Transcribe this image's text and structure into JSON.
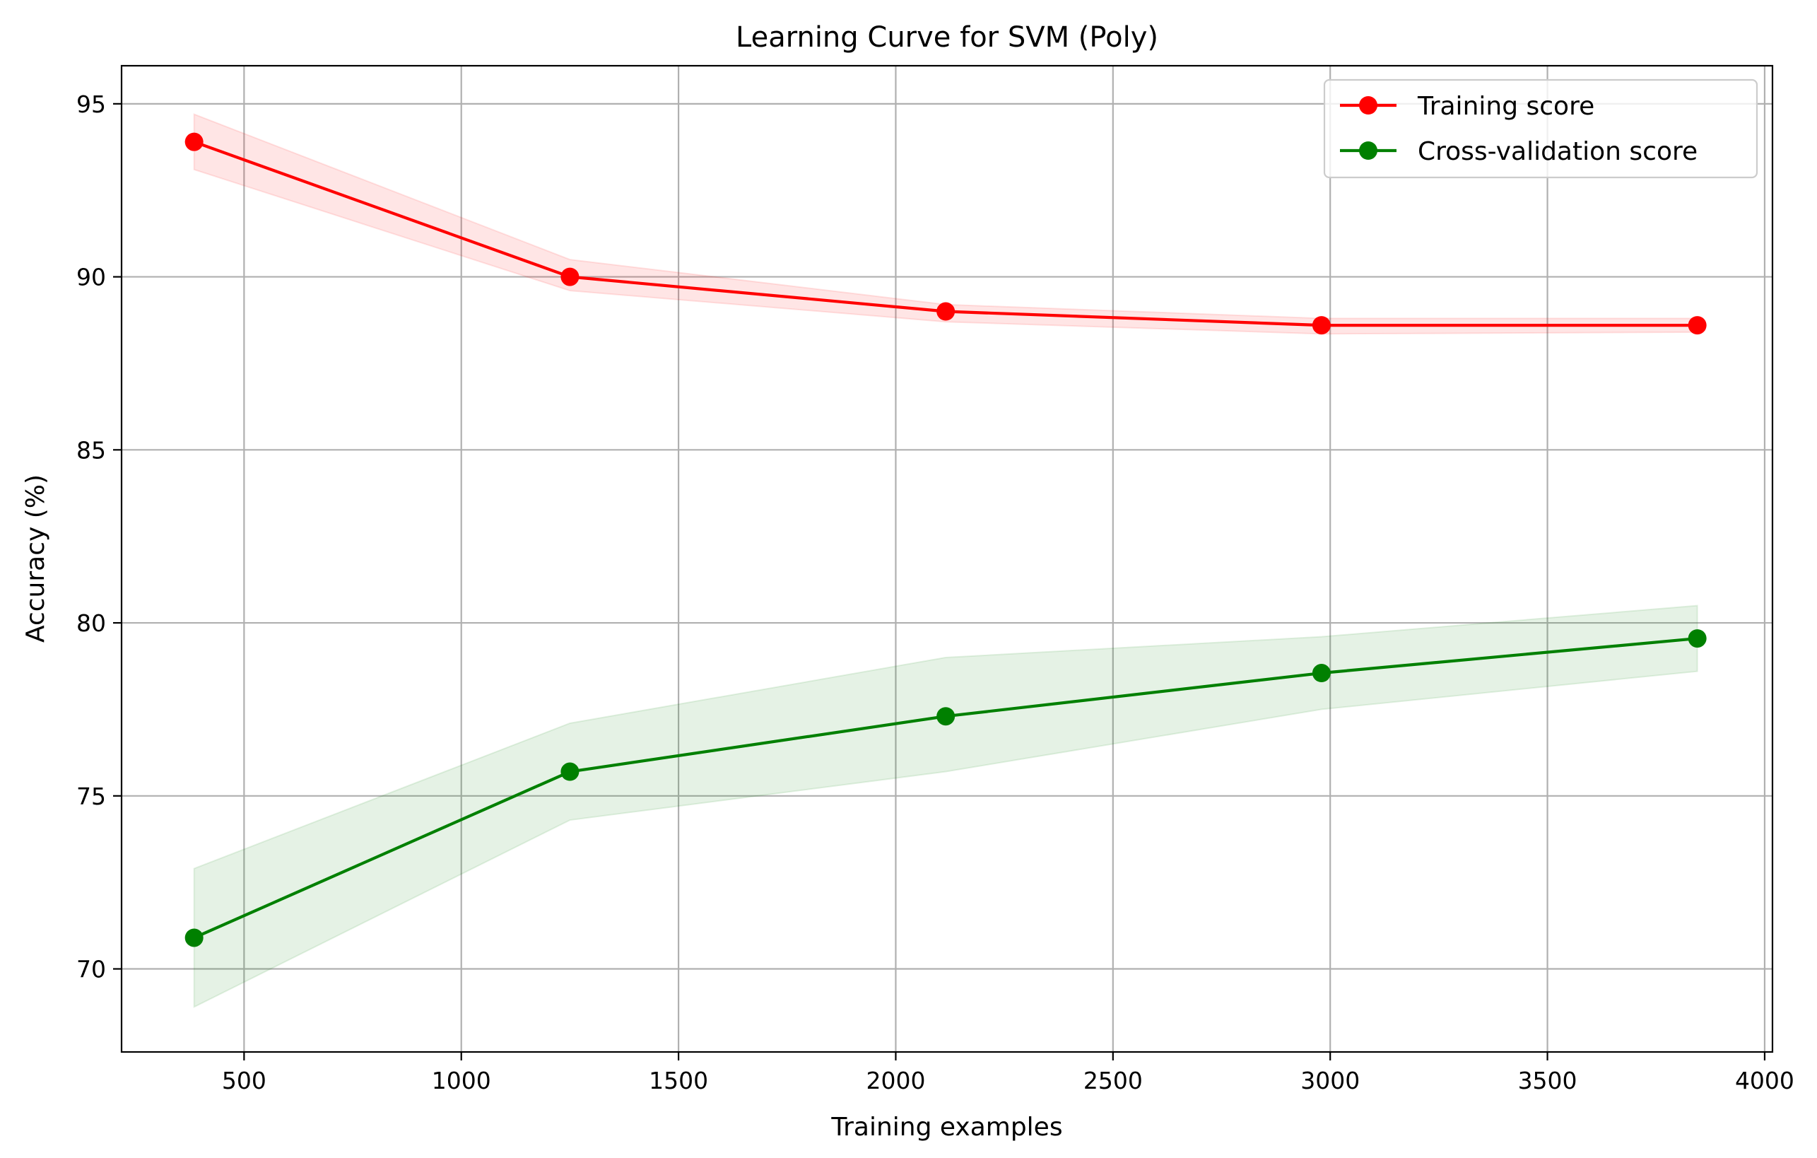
{
  "chart_data": {
    "type": "line",
    "title": "Learning Curve for SVM (Poly)",
    "xlabel": "Training examples",
    "ylabel": "Accuracy (%)",
    "xlim": [
      218,
      4018
    ],
    "ylim": [
      67.6,
      96.1
    ],
    "xticks": [
      500,
      1000,
      1500,
      2000,
      2500,
      3000,
      3500,
      4000
    ],
    "xtick_labels": [
      "500",
      "1000",
      "1500",
      "2000",
      "2500",
      "3000",
      "3500",
      "4000"
    ],
    "yticks": [
      70,
      75,
      80,
      85,
      90,
      95
    ],
    "ytick_labels": [
      "70",
      "75",
      "80",
      "85",
      "90",
      "95"
    ],
    "grid": true,
    "legend_position": "upper right",
    "x": [
      385,
      1250,
      2115,
      2980,
      3845
    ],
    "series": [
      {
        "name": "Training score",
        "color": "#ff0000",
        "marker": "circle",
        "values": [
          93.9,
          90.0,
          89.0,
          88.6,
          88.6
        ],
        "band_upper": [
          94.7,
          90.5,
          89.2,
          88.8,
          88.8
        ],
        "band_lower": [
          93.1,
          89.6,
          88.7,
          88.35,
          88.4
        ]
      },
      {
        "name": "Cross-validation score",
        "color": "#008000",
        "marker": "circle",
        "values": [
          70.9,
          75.7,
          77.3,
          78.55,
          79.55
        ],
        "band_upper": [
          72.9,
          77.1,
          79.0,
          79.6,
          80.5
        ],
        "band_lower": [
          68.9,
          74.3,
          75.7,
          77.5,
          78.6
        ]
      }
    ]
  }
}
